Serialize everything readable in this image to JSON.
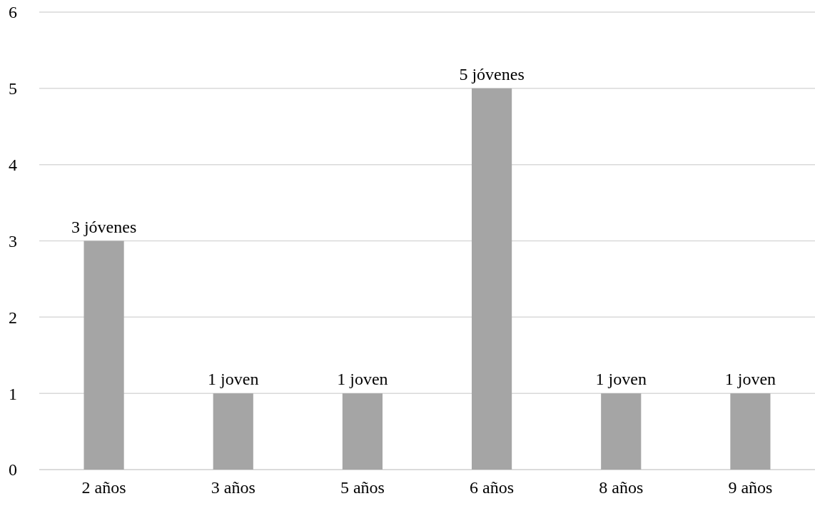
{
  "chart_data": {
    "type": "bar",
    "categories": [
      "2 años",
      "3 años",
      "5 años",
      "6 años",
      "8 años",
      "9 años"
    ],
    "values": [
      3,
      1,
      1,
      5,
      1,
      1
    ],
    "value_labels": [
      "3 jóvenes",
      "1 joven",
      "1 joven",
      "5 jóvenes",
      "1 joven",
      "1 joven"
    ],
    "color": "#a5a5a5",
    "ylim": [
      0,
      6
    ],
    "yticks": [
      0,
      1,
      2,
      3,
      4,
      5,
      6
    ],
    "grid": "y"
  }
}
